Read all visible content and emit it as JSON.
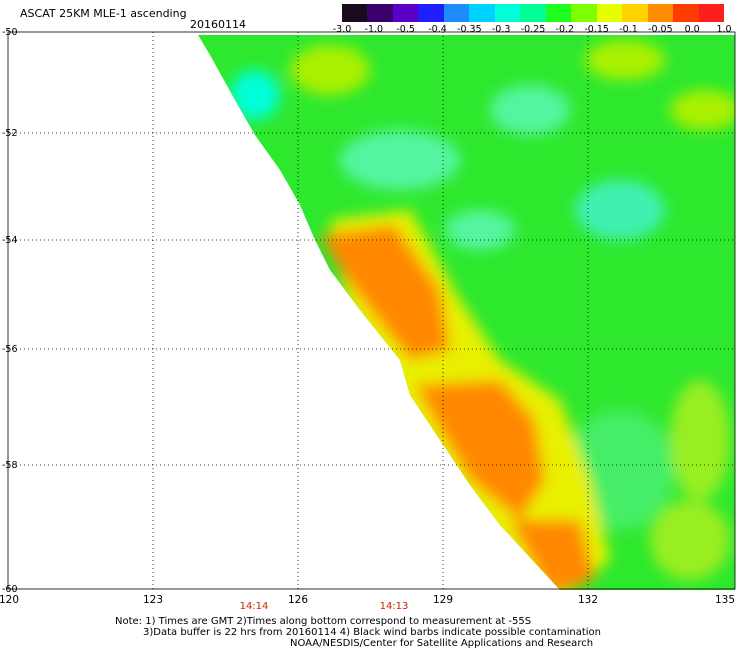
{
  "title": "ASCAT 25KM MLE-1 ascending",
  "date": "20160114",
  "colorbar": {
    "labels": [
      "-3.0",
      "-1.0",
      "-0.5",
      "-0.4",
      "-0.35",
      "-0.3",
      "-0.25",
      "-0.2",
      "-0.15",
      "-0.1",
      "-0.05",
      "0.0",
      "1.0"
    ],
    "colors": [
      "#1a0a1e",
      "#3a006e",
      "#5a00c8",
      "#1e1eff",
      "#1e8cff",
      "#00d2ff",
      "#00ffd8",
      "#00ff96",
      "#1eff1e",
      "#7dff00",
      "#e6ff00",
      "#ffd200",
      "#ff8c00",
      "#ff3c00",
      "#ff1e1e"
    ]
  },
  "axes": {
    "lon_labels": [
      "120",
      "123",
      "126",
      "129",
      "132",
      "135"
    ],
    "lat_labels": [
      "-50",
      "-52",
      "-54",
      "-56",
      "-58",
      "-60"
    ]
  },
  "time_marks": [
    "14:14",
    "14:13"
  ],
  "colors": {
    "green": "#22dd22",
    "cyan": "#11eeaa",
    "yellow": "#eeee00",
    "orange": "#ff8800",
    "time_red": "#cc2200"
  },
  "notes": [
    "Note: 1) Times are GMT 2)Times along bottom correspond to measurement at -55S",
    "3)Data buffer is 22 hrs from 20160114 4) Black wind barbs indicate possible contamination",
    "NOAA/NESDIS/Center for Satellite Applications and Research"
  ]
}
